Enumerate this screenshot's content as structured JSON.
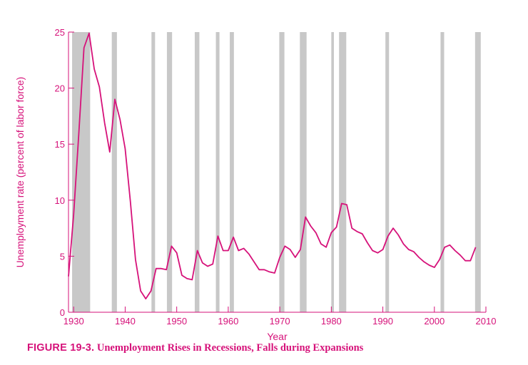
{
  "chart_data": {
    "type": "line",
    "xlabel": "Year",
    "ylabel": "Unemployment rate (percent of labor force)",
    "xlim": [
      1929,
      2010
    ],
    "ylim": [
      0,
      25
    ],
    "xticks": [
      1930,
      1940,
      1950,
      1960,
      1970,
      1980,
      1990,
      2000,
      2010
    ],
    "yticks": [
      0,
      5,
      10,
      15,
      20,
      25
    ],
    "line_color": "#d6127a",
    "shade_color": "#c8c8c8",
    "recessions": [
      [
        1929.7,
        1933.2
      ],
      [
        1937.4,
        1938.4
      ],
      [
        1945.1,
        1945.8
      ],
      [
        1948.1,
        1949.1
      ],
      [
        1953.5,
        1954.4
      ],
      [
        1957.6,
        1958.3
      ],
      [
        1960.3,
        1961.1
      ],
      [
        1969.9,
        1970.9
      ],
      [
        1973.9,
        1975.2
      ],
      [
        1980.0,
        1980.5
      ],
      [
        1981.5,
        1982.9
      ],
      [
        1990.5,
        1991.2
      ],
      [
        2001.2,
        2001.9
      ],
      [
        2007.9,
        2009.0
      ]
    ],
    "series": [
      {
        "x": [
          1929,
          1930,
          1931,
          1932,
          1933,
          1934,
          1935,
          1936,
          1937,
          1938,
          1939,
          1940,
          1941,
          1942,
          1943,
          1944,
          1945,
          1946,
          1947,
          1948,
          1949,
          1950,
          1951,
          1952,
          1953,
          1954,
          1955,
          1956,
          1957,
          1958,
          1959,
          1960,
          1961,
          1962,
          1963,
          1964,
          1965,
          1966,
          1967,
          1968,
          1969,
          1970,
          1971,
          1972,
          1973,
          1974,
          1975,
          1976,
          1977,
          1978,
          1979,
          1980,
          1981,
          1982,
          1983,
          1984,
          1985,
          1986,
          1987,
          1988,
          1989,
          1990,
          1991,
          1992,
          1993,
          1994,
          1995,
          1996,
          1997,
          1998,
          1999,
          2000,
          2001,
          2002,
          2003,
          2004,
          2005,
          2006,
          2007,
          2008
        ],
        "values": [
          3.2,
          8.7,
          15.9,
          23.6,
          24.9,
          21.7,
          20.1,
          16.9,
          14.3,
          19.0,
          17.2,
          14.6,
          9.9,
          4.7,
          1.9,
          1.2,
          1.9,
          3.9,
          3.9,
          3.8,
          5.9,
          5.3,
          3.3,
          3.0,
          2.9,
          5.5,
          4.4,
          4.1,
          4.3,
          6.8,
          5.5,
          5.5,
          6.7,
          5.5,
          5.7,
          5.2,
          4.5,
          3.8,
          3.8,
          3.6,
          3.5,
          4.9,
          5.9,
          5.6,
          4.9,
          5.6,
          8.5,
          7.7,
          7.1,
          6.1,
          5.8,
          7.1,
          7.6,
          9.7,
          9.6,
          7.5,
          7.2,
          7.0,
          6.2,
          5.5,
          5.3,
          5.6,
          6.8,
          7.5,
          6.9,
          6.1,
          5.6,
          5.4,
          4.9,
          4.5,
          4.2,
          4.0,
          4.7,
          5.8,
          6.0,
          5.5,
          5.1,
          4.6,
          4.6,
          5.8
        ]
      }
    ]
  },
  "caption": {
    "figure_label": "FIGURE 19-3.",
    "title": "Unemployment Rises in Recessions, Falls during Expansions"
  }
}
